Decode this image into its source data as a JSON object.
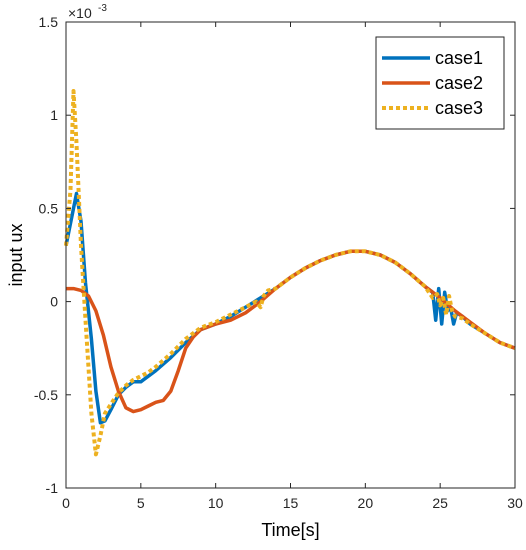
{
  "chart_data": {
    "type": "line",
    "xlabel": "Time[s]",
    "ylabel": "input ux",
    "y_exponent_label": "×10",
    "y_exponent_power": "-3",
    "xlim": [
      0,
      30
    ],
    "ylim": [
      -1,
      1.5
    ],
    "x_ticks": [
      0,
      5,
      10,
      15,
      20,
      25,
      30
    ],
    "x_tick_labels": [
      "0",
      "5",
      "10",
      "15",
      "20",
      "25",
      "30"
    ],
    "y_ticks": [
      -1,
      -0.5,
      0,
      0.5,
      1,
      1.5
    ],
    "y_tick_labels": [
      "-1",
      "-0.5",
      "0",
      "0.5",
      "1",
      "1.5"
    ],
    "grid": false,
    "legend_position": "top-right",
    "series": [
      {
        "name": "case1",
        "color": "#0072BD",
        "style": "solid",
        "x": [
          0,
          0.3,
          0.7,
          1.0,
          1.3,
          1.7,
          2.0,
          2.3,
          2.6,
          3.0,
          3.5,
          4.0,
          4.5,
          5.0,
          5.5,
          6.0,
          7.0,
          8.0,
          9.0,
          10.0,
          11.0,
          12.0,
          13.0,
          14.0,
          15.0,
          16.0,
          17.0,
          18.0,
          19.0,
          20.0,
          21.0,
          22.0,
          23.0,
          24.0,
          24.5,
          24.7,
          24.9,
          25.1,
          25.3,
          25.5,
          25.7,
          25.9,
          26.1,
          26.5,
          27.0,
          28.0,
          29.0,
          30.0
        ],
        "y": [
          0.3,
          0.42,
          0.58,
          0.43,
          0.1,
          -0.2,
          -0.48,
          -0.65,
          -0.64,
          -0.58,
          -0.5,
          -0.46,
          -0.43,
          -0.43,
          -0.4,
          -0.37,
          -0.3,
          -0.22,
          -0.15,
          -0.12,
          -0.08,
          -0.03,
          0.02,
          0.07,
          0.13,
          0.18,
          0.22,
          0.25,
          0.27,
          0.27,
          0.25,
          0.21,
          0.15,
          0.08,
          0.05,
          -0.1,
          0.07,
          -0.12,
          0.05,
          -0.05,
          -0.03,
          -0.12,
          -0.06,
          -0.08,
          -0.12,
          -0.17,
          -0.22,
          -0.25
        ]
      },
      {
        "name": "case2",
        "color": "#D95319",
        "style": "solid",
        "x": [
          0,
          0.5,
          1.0,
          1.5,
          2.0,
          2.5,
          3.0,
          3.5,
          4.0,
          4.5,
          5.0,
          5.5,
          6.0,
          6.5,
          7.0,
          7.5,
          8.0,
          8.5,
          9.0,
          10.0,
          11.0,
          12.0,
          13.0,
          14.0,
          15.0,
          16.0,
          17.0,
          18.0,
          19.0,
          20.0,
          21.0,
          22.0,
          23.0,
          24.0,
          25.0,
          26.0,
          27.0,
          28.0,
          29.0,
          30.0
        ],
        "y": [
          0.07,
          0.07,
          0.06,
          0.03,
          -0.05,
          -0.18,
          -0.35,
          -0.48,
          -0.57,
          -0.59,
          -0.58,
          -0.56,
          -0.54,
          -0.53,
          -0.48,
          -0.37,
          -0.25,
          -0.19,
          -0.15,
          -0.12,
          -0.1,
          -0.06,
          0.0,
          0.07,
          0.13,
          0.18,
          0.22,
          0.25,
          0.27,
          0.27,
          0.25,
          0.21,
          0.15,
          0.08,
          0.02,
          -0.05,
          -0.11,
          -0.17,
          -0.22,
          -0.25
        ]
      },
      {
        "name": "case3",
        "color": "#EDB120",
        "style": "dotted",
        "x": [
          0,
          0.3,
          0.5,
          0.7,
          1.0,
          1.3,
          1.7,
          2.0,
          2.3,
          2.6,
          3.0,
          3.5,
          4.0,
          4.5,
          5.0,
          5.5,
          6.0,
          7.0,
          8.0,
          9.0,
          10.0,
          11.0,
          12.0,
          12.7,
          13.0,
          13.2,
          13.5,
          14.0,
          15.0,
          16.0,
          17.0,
          18.0,
          19.0,
          20.0,
          21.0,
          22.0,
          23.0,
          24.0,
          24.5,
          24.8,
          25.0,
          25.2,
          25.4,
          25.6,
          25.8,
          26.0,
          26.5,
          27.0,
          28.0,
          29.0,
          30.0
        ],
        "y": [
          0.3,
          0.6,
          1.13,
          0.85,
          0.3,
          -0.1,
          -0.6,
          -0.82,
          -0.72,
          -0.6,
          -0.55,
          -0.49,
          -0.45,
          -0.42,
          -0.4,
          -0.38,
          -0.35,
          -0.28,
          -0.2,
          -0.14,
          -0.11,
          -0.07,
          -0.03,
          0.0,
          -0.03,
          0.03,
          0.06,
          0.07,
          0.13,
          0.18,
          0.22,
          0.25,
          0.27,
          0.27,
          0.25,
          0.21,
          0.15,
          0.08,
          0.02,
          0.04,
          -0.02,
          0.02,
          -0.07,
          0.03,
          -0.05,
          -0.08,
          -0.09,
          -0.12,
          -0.17,
          -0.22,
          -0.25
        ]
      }
    ]
  }
}
